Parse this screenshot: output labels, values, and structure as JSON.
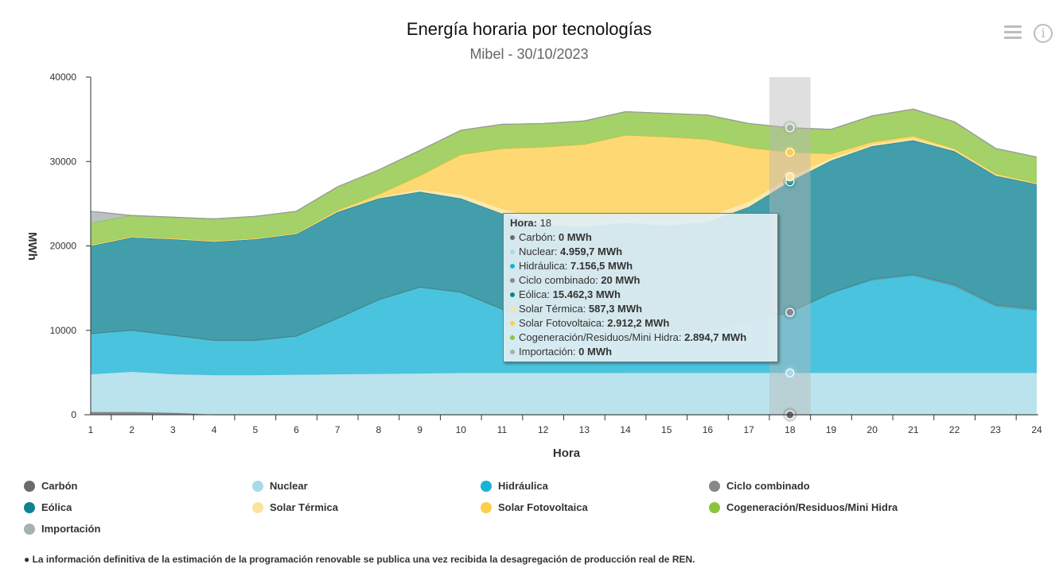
{
  "header": {
    "title": "Energía horaria por tecnologías",
    "subtitle": "Mibel - 30/10/2023",
    "menu_icon": "hamburger-menu-icon",
    "info_icon": "info-icon",
    "info_glyph": "i"
  },
  "chart_data": {
    "type": "area",
    "stacked": true,
    "title": "Energía horaria por tecnologías",
    "subtitle": "Mibel - 30/10/2023",
    "xlabel": "Hora",
    "ylabel": "MWh",
    "ylim": [
      0,
      40000
    ],
    "yticks": [
      0,
      10000,
      20000,
      30000,
      40000
    ],
    "ytick_labels": [
      "0",
      "10000",
      "20000",
      "30000",
      "40000"
    ],
    "x": [
      1,
      2,
      3,
      4,
      5,
      6,
      7,
      8,
      9,
      10,
      11,
      12,
      13,
      14,
      15,
      16,
      17,
      18,
      19,
      20,
      21,
      22,
      23,
      24
    ],
    "x_labels": [
      "1",
      "2",
      "3",
      "4",
      "5",
      "6",
      "7",
      "8",
      "9",
      "10",
      "11",
      "12",
      "13",
      "14",
      "15",
      "16",
      "17",
      "18",
      "19",
      "20",
      "21",
      "22",
      "23",
      "24"
    ],
    "grid": false,
    "legend_position": "bottom",
    "highlighted_x": 18,
    "series": [
      {
        "name": "Carbón",
        "color": "#6b6b6b",
        "values": [
          300,
          300,
          200,
          0,
          0,
          0,
          0,
          0,
          0,
          0,
          0,
          0,
          0,
          0,
          0,
          0,
          0,
          0,
          0,
          0,
          0,
          0,
          0,
          0
        ]
      },
      {
        "name": "Nuclear",
        "color": "#a6dbe8",
        "values": [
          4500,
          4800,
          4600,
          4700,
          4700,
          4750,
          4800,
          4850,
          4900,
          4950,
          4950,
          4950,
          4950,
          4960,
          4960,
          4960,
          4960,
          4959.7,
          4960,
          4960,
          4960,
          4960,
          4960,
          4960
        ]
      },
      {
        "name": "Hidráulica",
        "color": "#17b4d5",
        "values": [
          4800,
          4900,
          4600,
          4100,
          4100,
          4550,
          6600,
          8750,
          10200,
          9550,
          7550,
          6050,
          5050,
          4540,
          4840,
          5240,
          6040,
          7156.5,
          9440,
          11000,
          11540,
          10300,
          7900,
          7400
        ]
      },
      {
        "name": "Ciclo combinado",
        "color": "#888888",
        "values": [
          0,
          0,
          0,
          0,
          0,
          0,
          0,
          0,
          0,
          0,
          0,
          0,
          0,
          0,
          0,
          0,
          0,
          20,
          0,
          100,
          100,
          140,
          140,
          140
        ]
      },
      {
        "name": "Eólica",
        "color": "#0d8392",
        "values": [
          10400,
          11000,
          11400,
          11700,
          12000,
          12100,
          12600,
          12000,
          11300,
          11100,
          11300,
          11500,
          12200,
          13200,
          12600,
          12600,
          13600,
          15462.3,
          15700,
          15740,
          15900,
          15800,
          15300,
          14800
        ]
      },
      {
        "name": "Solar Térmica",
        "color": "#fce29a",
        "values": [
          50,
          50,
          50,
          50,
          50,
          50,
          80,
          150,
          300,
          500,
          600,
          650,
          700,
          700,
          700,
          700,
          650,
          587.3,
          300,
          250,
          250,
          200,
          150,
          60
        ]
      },
      {
        "name": "Solar Fotovoltaica",
        "color": "#fdcd4c",
        "values": [
          50,
          50,
          50,
          50,
          50,
          50,
          120,
          350,
          1600,
          4700,
          7100,
          8550,
          9100,
          9700,
          9800,
          9100,
          6350,
          2912.2,
          500,
          250,
          250,
          100,
          100,
          60
        ]
      },
      {
        "name": "Cogeneración/Residuos/Mini Hidra",
        "color": "#8cc43f",
        "values": [
          2600,
          2500,
          2500,
          2600,
          2600,
          2600,
          2800,
          2900,
          3000,
          2900,
          2900,
          2800,
          2800,
          2800,
          2800,
          2900,
          2900,
          2894.7,
          2900,
          3100,
          3200,
          3200,
          3000,
          3100
        ]
      },
      {
        "name": "Importación",
        "color": "#a6b1b0",
        "values": [
          1400,
          0,
          0,
          0,
          0,
          0,
          0,
          0,
          0,
          0,
          0,
          0,
          0,
          0,
          0,
          0,
          0,
          0,
          0,
          0,
          0,
          0,
          0,
          0
        ]
      }
    ]
  },
  "tooltip": {
    "header_label": "Hora:",
    "header_value": "18",
    "rows": [
      {
        "label": "Carbón:",
        "value": "0 MWh",
        "color": "#6b6b6b"
      },
      {
        "label": "Nuclear:",
        "value": "4.959,7 MWh",
        "color": "#a6dbe8"
      },
      {
        "label": "Hidráulica:",
        "value": "7.156,5 MWh",
        "color": "#17b4d5"
      },
      {
        "label": "Ciclo combinado:",
        "value": "20 MWh",
        "color": "#888888"
      },
      {
        "label": "Eólica:",
        "value": "15.462,3 MWh",
        "color": "#0d8392"
      },
      {
        "label": "Solar Térmica:",
        "value": "587,3 MWh",
        "color": "#fce29a"
      },
      {
        "label": "Solar Fotovoltaica:",
        "value": "2.912,2 MWh",
        "color": "#fdcd4c"
      },
      {
        "label": "Cogeneración/Residuos/Mini Hidra:",
        "value": "2.894,7 MWh",
        "color": "#8cc43f"
      },
      {
        "label": "Importación:",
        "value": "0 MWh",
        "color": "#a6b1b0"
      }
    ]
  },
  "legend": {
    "items": [
      {
        "label": "Carbón",
        "color": "#6b6b6b"
      },
      {
        "label": "Nuclear",
        "color": "#a6dbe8"
      },
      {
        "label": "Hidráulica",
        "color": "#17b4d5"
      },
      {
        "label": "Ciclo combinado",
        "color": "#888888"
      },
      {
        "label": "Eólica",
        "color": "#0d8392"
      },
      {
        "label": "Solar Térmica",
        "color": "#fce29a"
      },
      {
        "label": "Solar Fotovoltaica",
        "color": "#fdcd4c"
      },
      {
        "label": "Cogeneración/Residuos/Mini Hidra",
        "color": "#8cc43f"
      },
      {
        "label": "Importación",
        "color": "#a6b1b0"
      }
    ]
  },
  "footnote": "● La información definitiva de la estimación de la programación renovable se publica una vez recibida la desagregación de producción real de REN."
}
